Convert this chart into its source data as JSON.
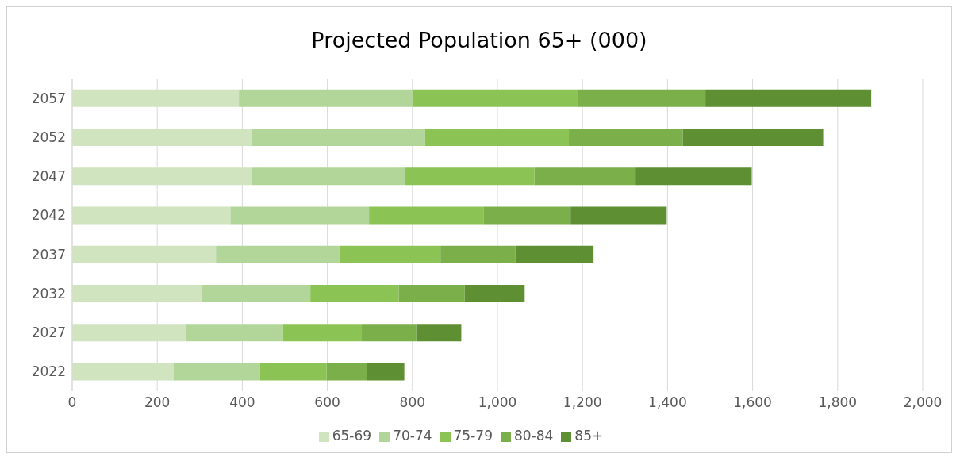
{
  "chart_data": {
    "type": "bar",
    "orientation": "horizontal",
    "stacked": true,
    "title": "Projected Population 65+ (000)",
    "categories": [
      "2057",
      "2052",
      "2047",
      "2042",
      "2037",
      "2032",
      "2027",
      "2022"
    ],
    "series": [
      {
        "name": "65-69",
        "color": "#d0e4c0",
        "values": [
          392,
          421,
          423,
          372,
          338,
          304,
          268,
          238
        ]
      },
      {
        "name": "70-74",
        "color": "#b2d69a",
        "values": [
          410,
          409,
          360,
          326,
          290,
          256,
          228,
          204
        ]
      },
      {
        "name": "75-79",
        "color": "#8bc455",
        "values": [
          387,
          338,
          304,
          270,
          238,
          208,
          185,
          156
        ]
      },
      {
        "name": "80-84",
        "color": "#7aaf4a",
        "values": [
          300,
          268,
          236,
          204,
          176,
          155,
          128,
          96
        ]
      },
      {
        "name": "85+",
        "color": "#5e8f32",
        "values": [
          390,
          330,
          275,
          226,
          184,
          141,
          106,
          87
        ]
      }
    ],
    "xlim": [
      0,
      2000
    ],
    "xticks": [
      0,
      200,
      400,
      600,
      800,
      {
        "value": 1000,
        "label": "1,000"
      },
      {
        "value": 1200,
        "label": "1,200"
      },
      {
        "value": 1400,
        "label": "1,400"
      },
      {
        "value": 1600,
        "label": "1,600"
      },
      {
        "value": 1800,
        "label": "1,800"
      },
      {
        "value": 2000,
        "label": "2,000"
      }
    ],
    "grid": "x",
    "legend": "bottom"
  }
}
